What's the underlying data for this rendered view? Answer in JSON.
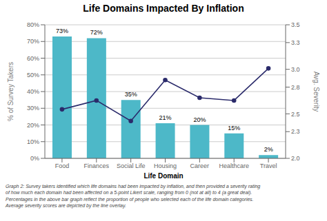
{
  "chart_data": {
    "type": "bar",
    "title": "Life Domains Impacted By Inflation",
    "categories": [
      "Food",
      "Finances",
      "Social Life",
      "Housing",
      "Career",
      "Healthcare",
      "Travel"
    ],
    "series": [
      {
        "type": "bar",
        "color": "#4db8c8",
        "values": [
          73,
          72,
          35,
          21,
          20,
          15,
          2
        ],
        "value_labels": [
          "73%",
          "72%",
          "35%",
          "21%",
          "20%",
          "15%",
          "2%"
        ],
        "data_labels": true
      },
      {
        "type": "line",
        "color": "#2b2b6b",
        "marker": "circle",
        "axis": "y2",
        "values": [
          2.55,
          2.65,
          2.42,
          2.88,
          2.68,
          2.65,
          3.01
        ]
      }
    ],
    "xlabel": "Life Domain",
    "ylabel": "% of Survey Takers",
    "y2label": "Avg. Severity",
    "ylim": [
      0,
      80
    ],
    "yticks": [
      {
        "value": 0,
        "label": "0%"
      },
      {
        "value": 10,
        "label": "10%"
      },
      {
        "value": 20,
        "label": "20%"
      },
      {
        "value": 30,
        "label": "30%"
      },
      {
        "value": 40,
        "label": "40%"
      },
      {
        "value": 50,
        "label": "50%"
      },
      {
        "value": 60,
        "label": "60%"
      },
      {
        "value": 70,
        "label": "70%"
      },
      {
        "value": 80,
        "label": "80%"
      }
    ],
    "y2lim": [
      2,
      3.5
    ],
    "y2ticks": [
      {
        "value": 2,
        "label": "2.0"
      },
      2.3,
      2.5,
      2.8,
      {
        "value": 3,
        "label": "3.0"
      },
      3.3,
      3.5
    ],
    "grid": true,
    "caption": "Graph 2: Survey takers identified which life domains had been impacted by inflation, and then provided a severity rating\nof how much each domain had been affected on a 5-point Likert scale, ranging from 0 (not at all) to 4 (a great deal).\nPercentages in the above bar graph reflect the proportion of people who selected each of the life domain categories.\nAverage severity scores are depicted by the line overlay."
  }
}
